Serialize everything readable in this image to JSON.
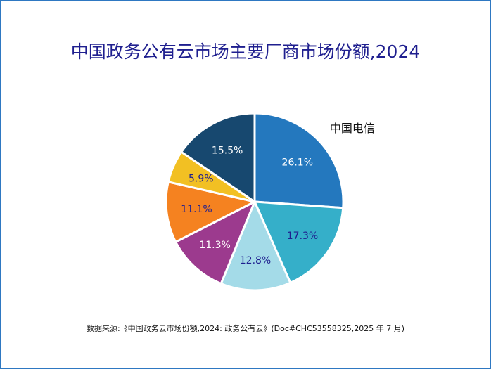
{
  "title": "中国政务公有云市场主要厂商市场份额,2024",
  "source": "数据来源:《中国政务云市场份额,2024: 政务公有云》(Doc#CHC53558325,2025 年 7 月)",
  "chart_data": {
    "type": "pie",
    "title": "中国政务公有云市场主要厂商市场份额,2024",
    "start_angle_deg": 0,
    "direction": "clockwise",
    "slices": [
      {
        "label": "中国电信",
        "value": 26.1,
        "display": "26.1%",
        "color": "#2478be",
        "text_color": "#ffffff"
      },
      {
        "label": "",
        "value": 17.3,
        "display": "17.3%",
        "color": "#35afc9",
        "text_color": "#1f1f8f"
      },
      {
        "label": "",
        "value": 12.8,
        "display": "12.8%",
        "color": "#a4dbe8",
        "text_color": "#1f1f8f"
      },
      {
        "label": "",
        "value": 11.3,
        "display": "11.3%",
        "color": "#9c3a8e",
        "text_color": "#ffffff"
      },
      {
        "label": "",
        "value": 11.1,
        "display": "11.1%",
        "color": "#f58220",
        "text_color": "#1f1f8f"
      },
      {
        "label": "",
        "value": 5.9,
        "display": "5.9%",
        "color": "#f2c023",
        "text_color": "#1f1f8f"
      },
      {
        "label": "",
        "value": 15.5,
        "display": "15.5%",
        "color": "#17486f",
        "text_color": "#ffffff"
      }
    ]
  }
}
